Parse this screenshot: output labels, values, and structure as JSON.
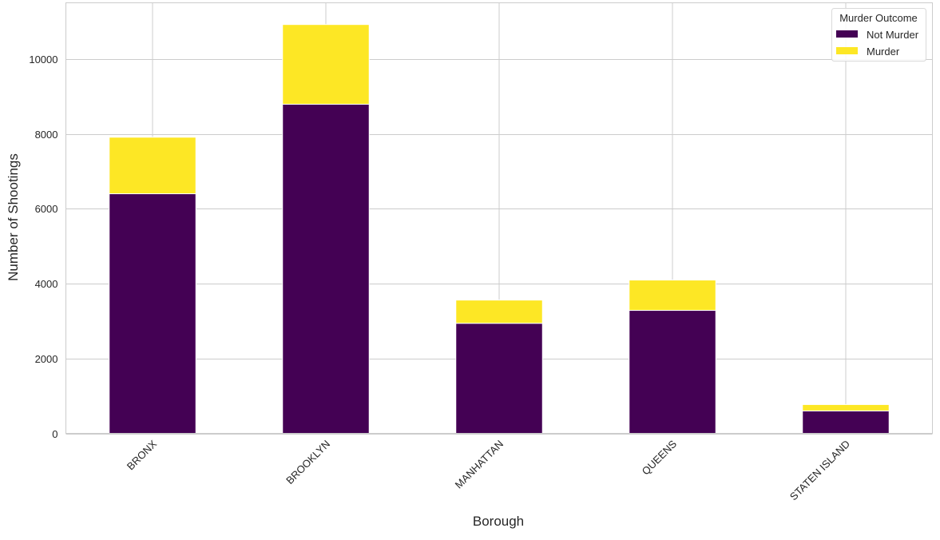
{
  "chart_data": {
    "type": "bar",
    "stacked": true,
    "title": "",
    "xlabel": "Borough",
    "ylabel": "Number of Shootings",
    "categories": [
      "BRONX",
      "BROOKLYN",
      "MANHATTAN",
      "QUEENS",
      "STATEN ISLAND"
    ],
    "series": [
      {
        "name": "Not Murder",
        "color": "#440154",
        "values": [
          6400,
          8790,
          2940,
          3285,
          600
        ]
      },
      {
        "name": "Murder",
        "color": "#fde725",
        "values": [
          1510,
          2130,
          620,
          810,
          170
        ]
      }
    ],
    "ylim": [
      0,
      11500
    ],
    "yticks": [
      0,
      2000,
      4000,
      6000,
      8000,
      10000
    ],
    "grid": true,
    "legend": {
      "title": "Murder Outcome",
      "placement": "top-right"
    }
  }
}
